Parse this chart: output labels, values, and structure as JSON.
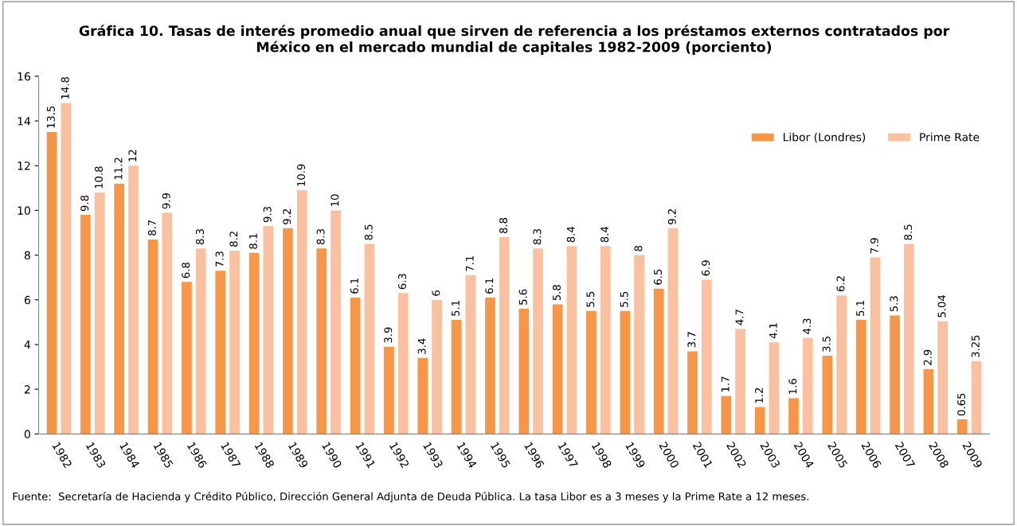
{
  "chart_data": {
    "type": "bar",
    "title": "Gráfica 10. Tasas de interés promedio anual que sirven de referencia a los préstamos externos contratados por\nMéxico en el mercado mundial de capitales 1982-2009 (porciento)",
    "categories": [
      "1982",
      "1983",
      "1984",
      "1985",
      "1986",
      "1987",
      "1988",
      "1989",
      "1990",
      "1991",
      "1992",
      "1993",
      "1994",
      "1995",
      "1996",
      "1997",
      "1998",
      "1999",
      "2000",
      "2001",
      "2002",
      "2003",
      "2004",
      "2005",
      "2006",
      "2007",
      "2008",
      "2009"
    ],
    "series": [
      {
        "name": "Libor (Londres)",
        "color": "#f79646",
        "values": [
          13.5,
          9.8,
          11.2,
          8.7,
          6.8,
          7.3,
          8.1,
          9.2,
          8.3,
          6.1,
          3.9,
          3.4,
          5.1,
          6.1,
          5.6,
          5.8,
          5.5,
          5.5,
          6.5,
          3.7,
          1.7,
          1.2,
          1.6,
          3.5,
          5.1,
          5.3,
          2.9,
          0.65
        ]
      },
      {
        "name": "Prime Rate",
        "color": "#fac09f",
        "values": [
          14.8,
          10.8,
          12,
          9.9,
          8.3,
          8.2,
          9.3,
          10.9,
          10,
          8.5,
          6.3,
          6,
          7.1,
          8.8,
          8.3,
          8.4,
          8.4,
          8,
          9.2,
          6.9,
          4.7,
          4.1,
          4.3,
          6.2,
          7.9,
          8.5,
          5.04,
          3.25
        ]
      }
    ],
    "ylim": [
      0,
      16
    ],
    "yticks": [
      0,
      2,
      4,
      6,
      8,
      10,
      12,
      14,
      16
    ],
    "data_labels": true,
    "grid": false,
    "legend": "top right",
    "annotations": [
      "Fuente:  Secretaría de Hacienda y Crédito Público, Dirección General Adjunta de Deuda Pública. La tasa Libor es a 3 meses y la Prime Rate a 12 meses."
    ]
  }
}
